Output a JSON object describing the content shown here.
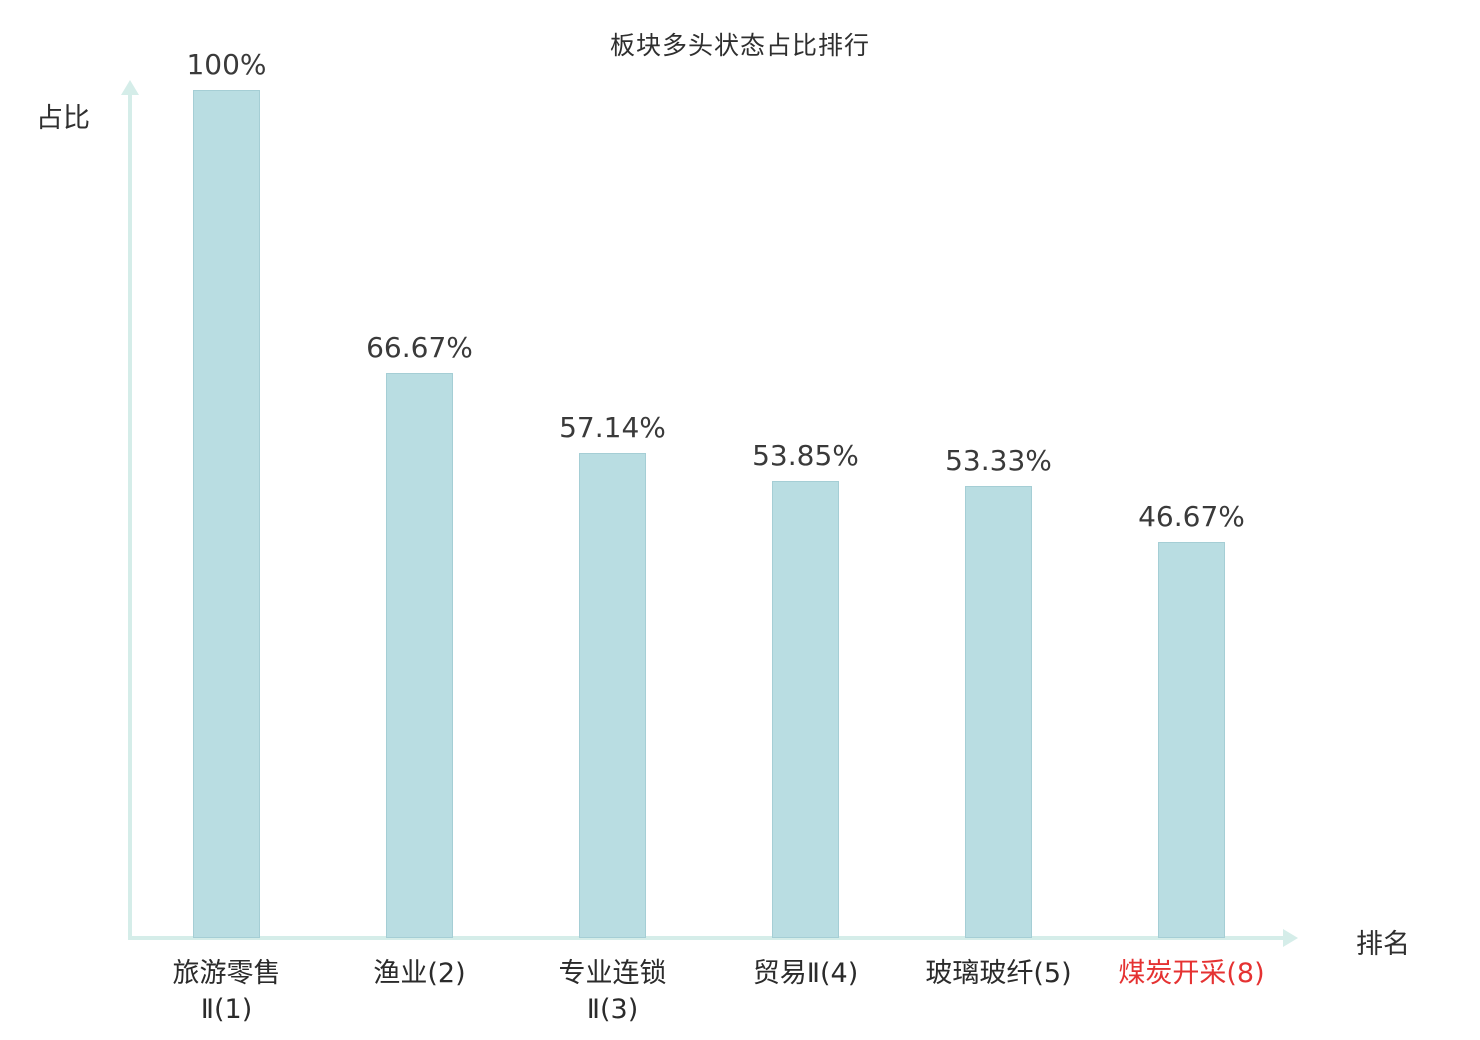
{
  "chart_data": {
    "type": "bar",
    "title": "板块多头状态占比排行",
    "xlabel": "排名",
    "ylabel": "占比",
    "categories": [
      "旅游零售Ⅱ(1)",
      "渔业(2)",
      "专业连锁Ⅱ(3)",
      "贸易Ⅱ(4)",
      "玻璃玻纤(5)",
      "煤炭开采(8)"
    ],
    "category_lines": [
      [
        "旅游零售",
        "Ⅱ(1)"
      ],
      [
        "渔业(2)"
      ],
      [
        "专业连锁",
        "Ⅱ(3)"
      ],
      [
        "贸易Ⅱ(4)"
      ],
      [
        "玻璃玻纤(5)"
      ],
      [
        "煤炭开采(8)"
      ]
    ],
    "values": [
      100,
      66.67,
      57.14,
      53.85,
      53.33,
      46.67
    ],
    "value_labels": [
      "100%",
      "66.67%",
      "57.14%",
      "53.85%",
      "53.33%",
      "46.67%"
    ],
    "ylim": [
      0,
      100
    ],
    "grid": false,
    "legend": "none",
    "bar_color": "#b9dde2",
    "bar_border_color": "#a5ced5",
    "axis_color": "#d5ede9",
    "text_color": "#2b2b2b",
    "highlight_index": 5,
    "highlight_color": "#e53232"
  }
}
